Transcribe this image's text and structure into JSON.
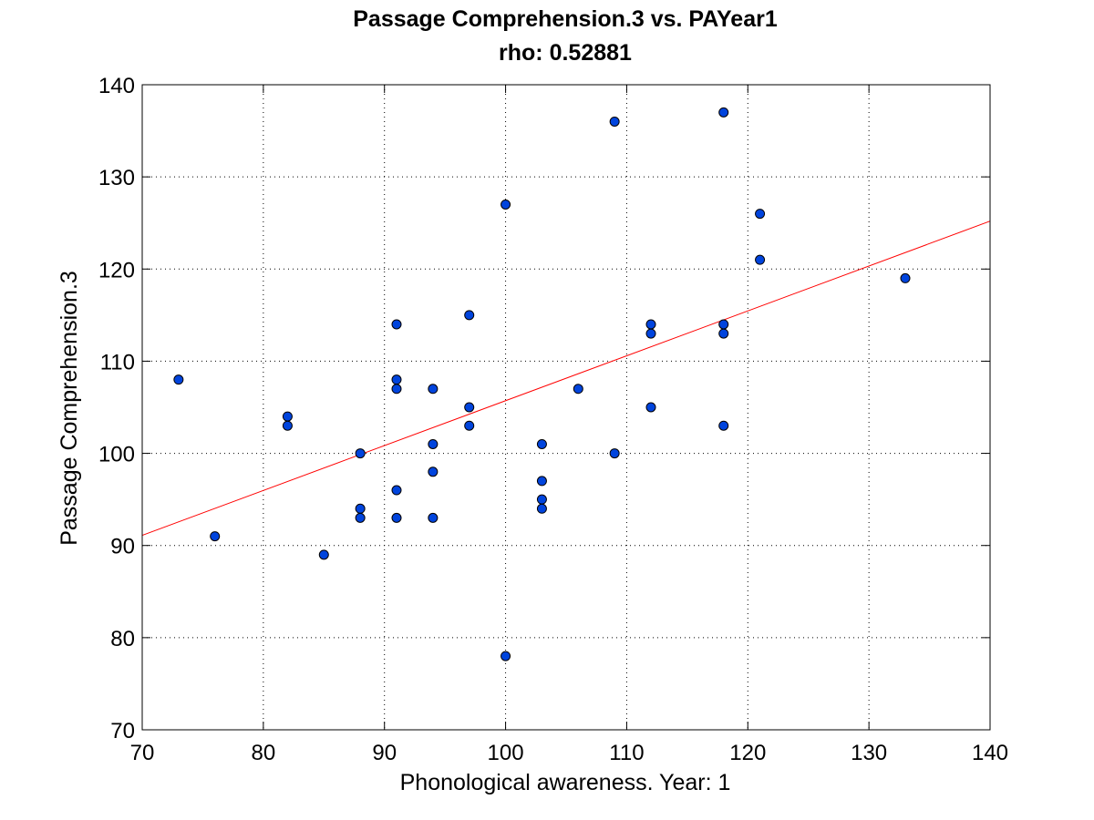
{
  "chart_data": {
    "type": "scatter",
    "title": "Passage Comprehension.3 vs. PAYear1",
    "subtitle": "rho: 0.52881",
    "xlabel": "Phonological awareness. Year: 1",
    "ylabel": "Passage Comprehension.3",
    "xlim": [
      70,
      140
    ],
    "ylim": [
      70,
      140
    ],
    "xticks": [
      70,
      80,
      90,
      100,
      110,
      120,
      130,
      140
    ],
    "yticks": [
      70,
      80,
      90,
      100,
      110,
      120,
      130,
      140
    ],
    "grid": true,
    "marker_color": "#0044dd",
    "fit_line_color": "#ff0000",
    "fit_line": {
      "x": [
        70,
        140
      ],
      "y": [
        91.1,
        125.2
      ]
    },
    "points": [
      [
        73,
        108
      ],
      [
        76,
        91
      ],
      [
        82,
        104
      ],
      [
        82,
        103
      ],
      [
        85,
        89
      ],
      [
        88,
        100
      ],
      [
        88,
        94
      ],
      [
        88,
        93
      ],
      [
        91,
        114
      ],
      [
        91,
        108
      ],
      [
        91,
        107
      ],
      [
        91,
        96
      ],
      [
        91,
        93
      ],
      [
        94,
        107
      ],
      [
        94,
        101
      ],
      [
        94,
        98
      ],
      [
        94,
        93
      ],
      [
        97,
        115
      ],
      [
        97,
        105
      ],
      [
        97,
        103
      ],
      [
        100,
        127
      ],
      [
        100,
        78
      ],
      [
        103,
        101
      ],
      [
        103,
        97
      ],
      [
        103,
        95
      ],
      [
        103,
        94
      ],
      [
        106,
        107
      ],
      [
        109,
        136
      ],
      [
        109,
        100
      ],
      [
        112,
        114
      ],
      [
        112,
        113
      ],
      [
        112,
        105
      ],
      [
        118,
        137
      ],
      [
        118,
        114
      ],
      [
        118,
        113
      ],
      [
        118,
        103
      ],
      [
        121,
        126
      ],
      [
        121,
        121
      ],
      [
        133,
        119
      ]
    ]
  }
}
